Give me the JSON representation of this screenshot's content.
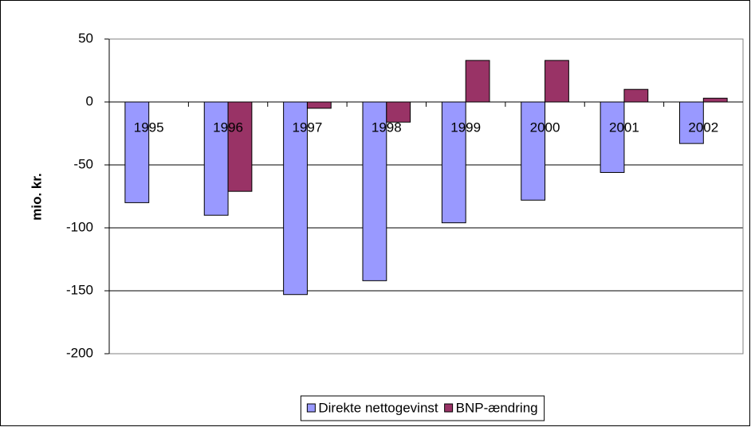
{
  "chart_data": {
    "type": "bar",
    "y_label": "mio. kr.",
    "categories": [
      "1995",
      "1996",
      "1997",
      "1998",
      "1999",
      "2000",
      "2001",
      "2002"
    ],
    "series": [
      {
        "name": "Direkte nettogevinst",
        "color": "#9999ff",
        "values": [
          -80,
          -90,
          -153,
          -142,
          -96,
          -78,
          -56,
          -33
        ]
      },
      {
        "name": "BNP-ændring",
        "color": "#993366",
        "values": [
          null,
          -71,
          -5,
          -16,
          33,
          33,
          10,
          3
        ]
      }
    ],
    "ylim": [
      -200,
      50
    ],
    "yticks": [
      -200,
      -150,
      -100,
      -50,
      0,
      50
    ],
    "grid": true,
    "legend": "bottom"
  }
}
